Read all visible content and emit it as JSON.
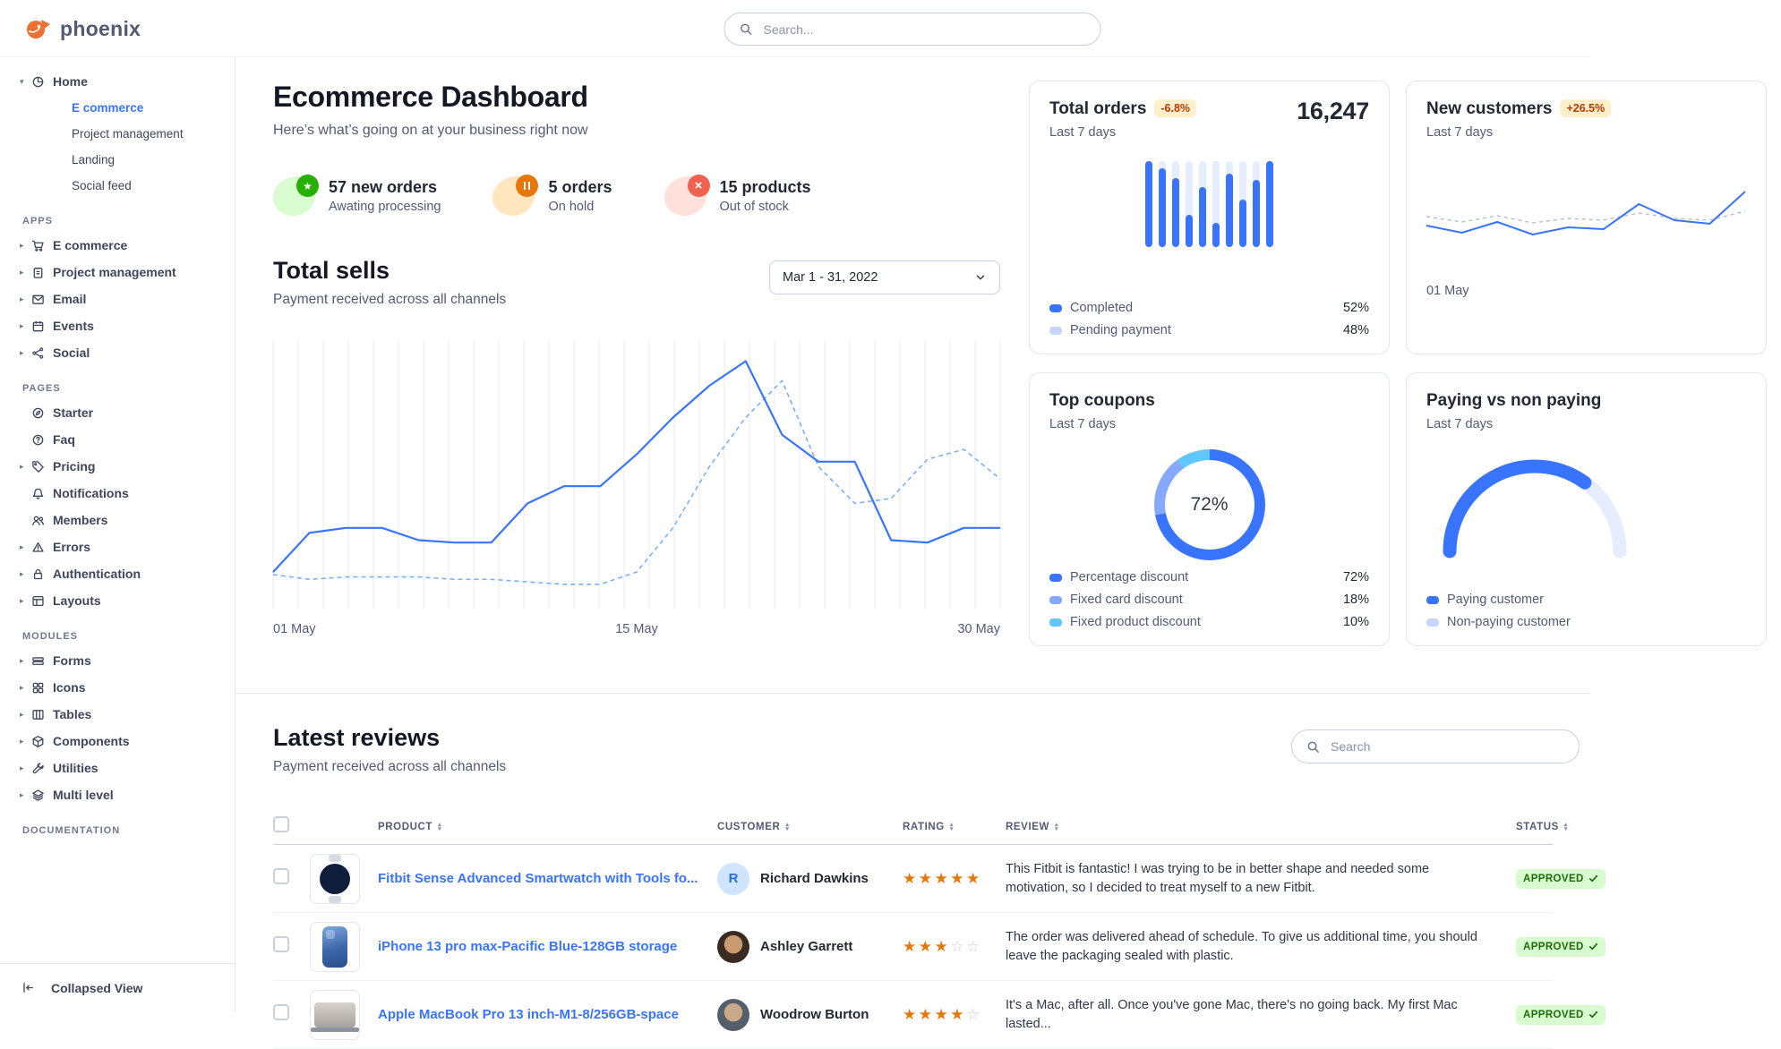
{
  "brand": {
    "name": "phoenix"
  },
  "header": {
    "search_placeholder": "Search..."
  },
  "colors": {
    "primary": "#3874ff",
    "primary_subtle": "#c7d6ff",
    "warning_badge_bg": "#ffefca",
    "warning_badge_text": "#bc3803",
    "success_badge_bg": "#d9fbd0",
    "success_badge_text": "#1c6c09"
  },
  "sidebar": {
    "sections": [
      {
        "label": "",
        "items": [
          {
            "label": "Home",
            "icon": "pie",
            "caret": "down",
            "children": [
              {
                "label": "E commerce",
                "active": true
              },
              {
                "label": "Project management"
              },
              {
                "label": "Landing"
              },
              {
                "label": "Social feed"
              }
            ]
          }
        ]
      },
      {
        "label": "APPS",
        "items": [
          {
            "label": "E commerce",
            "icon": "cart",
            "caret": "right"
          },
          {
            "label": "Project management",
            "icon": "clipboard",
            "caret": "right"
          },
          {
            "label": "Email",
            "icon": "envelope",
            "caret": "right"
          },
          {
            "label": "Events",
            "icon": "calendar",
            "caret": "right"
          },
          {
            "label": "Social",
            "icon": "share",
            "caret": "right"
          }
        ]
      },
      {
        "label": "PAGES",
        "items": [
          {
            "label": "Starter",
            "icon": "compass"
          },
          {
            "label": "Faq",
            "icon": "question"
          },
          {
            "label": "Pricing",
            "icon": "tag",
            "caret": "right"
          },
          {
            "label": "Notifications",
            "icon": "bell"
          },
          {
            "label": "Members",
            "icon": "users"
          },
          {
            "label": "Errors",
            "icon": "warning",
            "caret": "right"
          },
          {
            "label": "Authentication",
            "icon": "lock",
            "caret": "right"
          },
          {
            "label": "Layouts",
            "icon": "layout",
            "caret": "right"
          }
        ]
      },
      {
        "label": "MODULES",
        "items": [
          {
            "label": "Forms",
            "icon": "forms",
            "caret": "right"
          },
          {
            "label": "Icons",
            "icon": "grid",
            "caret": "right"
          },
          {
            "label": "Tables",
            "icon": "table",
            "caret": "right"
          },
          {
            "label": "Components",
            "icon": "box",
            "caret": "right"
          },
          {
            "label": "Utilities",
            "icon": "wrench",
            "caret": "right"
          },
          {
            "label": "Multi level",
            "icon": "layers",
            "caret": "right"
          }
        ]
      },
      {
        "label": "DOCUMENTATION",
        "items": []
      }
    ],
    "footer": {
      "label": "Collapsed View",
      "icon": "collapse"
    }
  },
  "page": {
    "title": "Ecommerce Dashboard",
    "subtitle": "Here’s what’s going on at your business right now",
    "stats": [
      {
        "icon": "star",
        "color": "success",
        "value": "57 new orders",
        "caption": "Awating processing"
      },
      {
        "icon": "pause",
        "color": "warning",
        "value": "5 orders",
        "caption": "On hold"
      },
      {
        "icon": "x",
        "color": "danger",
        "value": "15 products",
        "caption": "Out of stock"
      }
    ]
  },
  "total_sells": {
    "title": "Total sells",
    "subtitle": "Payment received across all channels",
    "date_range": "Mar 1 - 31, 2022",
    "chart": {
      "type": "line",
      "x_labels": [
        "01 May",
        "15 May",
        "30 May"
      ],
      "ylim": [
        0,
        100
      ],
      "gridlines": 30,
      "series": [
        {
          "name": "current",
          "style": "solid",
          "color": "#3874ff",
          "values": [
            12,
            28,
            30,
            30,
            25,
            24,
            24,
            40,
            47,
            47,
            60,
            75,
            88,
            98,
            68,
            57,
            57,
            25,
            24,
            30,
            30
          ]
        },
        {
          "name": "previous",
          "style": "dashed",
          "color": "#7bb0ff",
          "values": [
            11,
            9,
            10,
            10,
            10,
            9,
            9,
            8,
            7,
            7,
            12,
            30,
            55,
            75,
            90,
            55,
            40,
            42,
            58,
            62,
            50
          ]
        }
      ]
    }
  },
  "cards": {
    "total_orders": {
      "title": "Total orders",
      "badge": "-6.8%",
      "period": "Last 7 days",
      "value": "16,247",
      "bars": [
        100,
        92,
        80,
        38,
        70,
        28,
        85,
        55,
        78,
        100
      ],
      "legend": [
        {
          "label": "Completed",
          "value": "52%",
          "color": "#3874ff"
        },
        {
          "label": "Pending payment",
          "value": "48%",
          "color": "#c7d6ff"
        }
      ]
    },
    "new_customers": {
      "title": "New customers",
      "badge": "+26.5%",
      "period": "Last 7 days",
      "x_label": "01 May",
      "chart": {
        "type": "line",
        "series": [
          {
            "name": "current",
            "style": "solid",
            "color": "#3874ff",
            "values": [
              46,
              38,
              50,
              36,
              44,
              42,
              70,
              52,
              48,
              84
            ]
          },
          {
            "name": "previous",
            "style": "dashed",
            "color": "#b6bdd1",
            "values": [
              56,
              50,
              57,
              49,
              54,
              52,
              60,
              54,
              52,
              62
            ]
          }
        ]
      }
    },
    "top_coupons": {
      "title": "Top coupons",
      "period": "Last 7 days",
      "center_value": "72%",
      "segments": [
        {
          "label": "Percentage discount",
          "value": "72%",
          "pct": 72,
          "color": "#3874ff"
        },
        {
          "label": "Fixed card discount",
          "value": "18%",
          "pct": 18,
          "color": "#85a9ff"
        },
        {
          "label": "Fixed product discount",
          "value": "10%",
          "pct": 10,
          "color": "#60c6ff"
        }
      ]
    },
    "paying": {
      "title": "Paying vs non paying",
      "period": "Last 7 days",
      "paying_pct": 70,
      "legend": [
        {
          "label": "Paying customer",
          "color": "#3874ff"
        },
        {
          "label": "Non-paying customer",
          "color": "#c7d6ff"
        }
      ]
    }
  },
  "reviews": {
    "title": "Latest reviews",
    "subtitle": "Payment received across all channels",
    "search_placeholder": "Search",
    "columns": [
      {
        "label": "PRODUCT"
      },
      {
        "label": "CUSTOMER"
      },
      {
        "label": "RATING"
      },
      {
        "label": "REVIEW"
      },
      {
        "label": "STATUS"
      }
    ],
    "rows": [
      {
        "product": "Fitbit Sense Advanced Smartwatch with Tools fo...",
        "customer": "Richard Dawkins",
        "avatar_type": "initial",
        "avatar_initial": "R",
        "rating": 5,
        "review": "This Fitbit is fantastic! I was trying to be in better shape and needed some motivation, so I decided to treat myself to a new Fitbit.",
        "status": "APPROVED",
        "thumb": "watch"
      },
      {
        "product": "iPhone 13 pro max-Pacific Blue-128GB storage",
        "customer": "Ashley Garrett",
        "avatar_type": "photo1",
        "rating": 3,
        "review": "The order was delivered ahead of schedule. To give us additional time, you should leave the packaging sealed with plastic.",
        "status": "APPROVED",
        "thumb": "iphone"
      },
      {
        "product": "Apple MacBook Pro 13 inch-M1-8/256GB-space",
        "customer": "Woodrow Burton",
        "avatar_type": "photo2",
        "rating": 4,
        "review": "It's a Mac, after all. Once you've gone Mac, there's no going back. My first Mac lasted...",
        "status": "APPROVED",
        "thumb": "macbook"
      }
    ]
  }
}
